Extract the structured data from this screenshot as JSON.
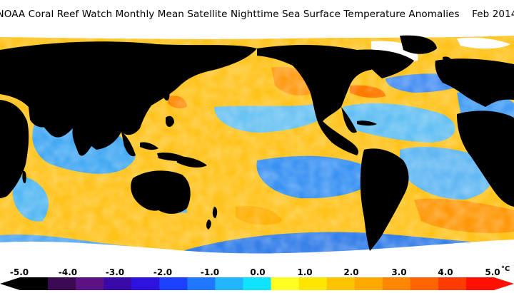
{
  "title": "NOAA Coral Reef Watch Monthly Mean Satellite Nighttime Sea Surface Temperature Anomalies    Feb 2014",
  "colorbar": {
    "ticks": [
      "-5.0",
      "-4.0",
      "-3.0",
      "-2.0",
      "-1.0",
      "0.0",
      "1.0",
      "2.0",
      "3.0",
      "4.0",
      "5.0"
    ],
    "unit": "°C",
    "min": -5.0,
    "max": 5.0,
    "colors": [
      "#000000",
      "#3c0a52",
      "#5a1285",
      "#3a0aa8",
      "#2d12e0",
      "#1b40ff",
      "#1f78ff",
      "#21b4ff",
      "#0fe3ff",
      "#ffff24",
      "#ffe600",
      "#ffc400",
      "#ffa800",
      "#ff8600",
      "#ff6400",
      "#ff3c00",
      "#ff1000"
    ]
  },
  "colors": {
    "land": "#000000",
    "ice": "#ffffff",
    "warm": "#ffc21a",
    "cool": "#2fa6ff"
  }
}
